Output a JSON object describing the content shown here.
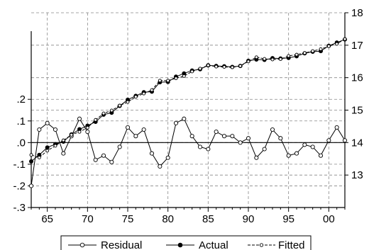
{
  "chart_data": {
    "type": "line",
    "x": [
      1963,
      1964,
      1965,
      1966,
      1967,
      1968,
      1969,
      1970,
      1971,
      1972,
      1973,
      1974,
      1975,
      1976,
      1977,
      1978,
      1979,
      1980,
      1981,
      1982,
      1983,
      1984,
      1985,
      1986,
      1987,
      1988,
      1989,
      1990,
      1991,
      1992,
      1993,
      1994,
      1995,
      1996,
      1997,
      1998,
      1999,
      2000,
      2001,
      2002
    ],
    "x_tick_values": [
      1965,
      1970,
      1975,
      1980,
      1985,
      1990,
      1995,
      2000
    ],
    "x_tick_labels": [
      "65",
      "70",
      "75",
      "80",
      "85",
      "90",
      "95",
      "00"
    ],
    "x_range": [
      1963,
      2002
    ],
    "left_axis": {
      "ylim": [
        -0.3,
        0.6
      ],
      "ticks": [
        -0.3,
        -0.2,
        -0.1,
        0.0,
        0.1,
        0.2
      ],
      "tick_labels": [
        "-.3",
        "-.2",
        "-.1",
        ".0",
        ".1",
        ".2"
      ]
    },
    "right_axis": {
      "ylim": [
        12.0,
        18.0
      ],
      "ticks": [
        13,
        14,
        15,
        16,
        17,
        18
      ],
      "tick_labels": [
        "13",
        "14",
        "15",
        "16",
        "17",
        "18"
      ]
    },
    "series": [
      {
        "name": "Residual",
        "axis": "left",
        "marker": "open-circle",
        "line": "solid",
        "values": [
          -0.2,
          0.06,
          0.09,
          0.06,
          -0.05,
          0.03,
          0.11,
          0.05,
          -0.08,
          -0.06,
          -0.09,
          -0.02,
          0.07,
          0.03,
          0.06,
          -0.05,
          -0.11,
          -0.07,
          0.09,
          0.11,
          0.03,
          -0.02,
          -0.03,
          0.05,
          0.03,
          0.03,
          0.0,
          0.02,
          -0.07,
          -0.03,
          0.06,
          0.02,
          -0.06,
          -0.05,
          -0.01,
          -0.02,
          -0.06,
          0.01,
          0.07,
          0.01
        ]
      },
      {
        "name": "Actual",
        "axis": "right",
        "marker": "filled-circle",
        "line": "solid",
        "values": [
          13.42,
          13.62,
          13.85,
          13.95,
          14.03,
          14.25,
          14.41,
          14.52,
          14.64,
          14.86,
          14.92,
          15.13,
          15.32,
          15.44,
          15.55,
          15.57,
          15.86,
          15.87,
          16.03,
          16.13,
          16.22,
          16.26,
          16.38,
          16.36,
          16.35,
          16.33,
          16.36,
          16.52,
          16.56,
          16.55,
          16.6,
          16.59,
          16.61,
          16.66,
          16.75,
          16.8,
          16.82,
          16.98,
          17.08,
          17.18
        ]
      },
      {
        "name": "Fitted",
        "axis": "right",
        "marker": "open-circle",
        "line": "dashed",
        "values": [
          13.62,
          13.54,
          13.75,
          13.9,
          14.07,
          14.24,
          14.33,
          14.46,
          14.7,
          14.9,
          14.99,
          15.14,
          15.25,
          15.41,
          15.51,
          15.62,
          15.91,
          15.91,
          15.98,
          16.05,
          16.19,
          16.28,
          16.38,
          16.34,
          16.33,
          16.32,
          16.36,
          16.5,
          16.63,
          16.58,
          16.56,
          16.57,
          16.67,
          16.71,
          16.76,
          16.82,
          16.88,
          16.97,
          17.04,
          17.19
        ]
      }
    ],
    "grid": true,
    "legend_position": "bottom"
  }
}
